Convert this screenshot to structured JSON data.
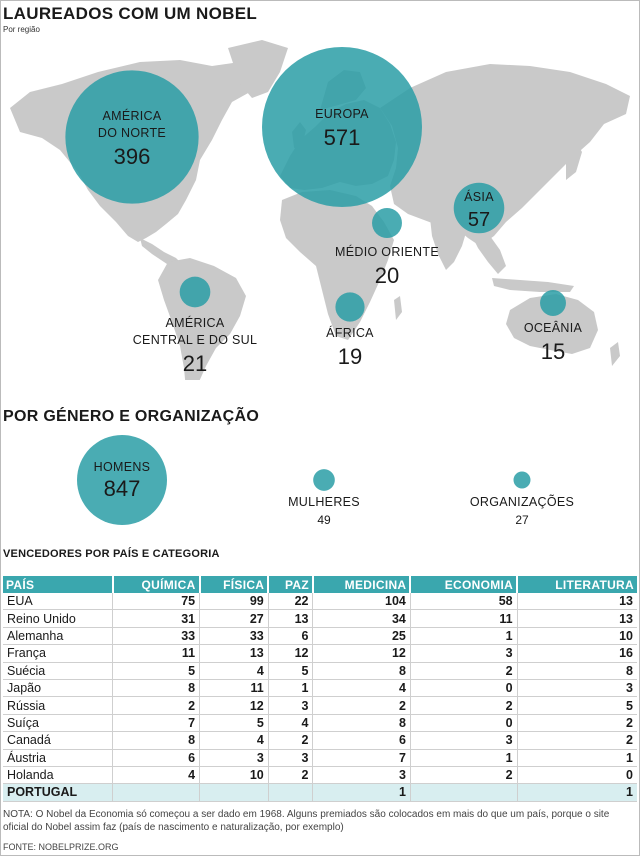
{
  "header": {
    "title": "LAUREADOS COM UM NOBEL",
    "subtitle": "Por região"
  },
  "chart_data": [
    {
      "type": "bubble-map",
      "title": "LAUREADOS COM UM NOBEL",
      "subtitle": "Por região",
      "regions": [
        {
          "name": "AMÉRICA DO NORTE",
          "label_lines": [
            "AMÉRICA",
            "DO NORTE"
          ],
          "value": 396
        },
        {
          "name": "EUROPA",
          "label_lines": [
            "EUROPA"
          ],
          "value": 571
        },
        {
          "name": "ÁSIA",
          "label_lines": [
            "ÁSIA"
          ],
          "value": 57
        },
        {
          "name": "MÉDIO ORIENTE",
          "label_lines": [
            "MÉDIO ORIENTE"
          ],
          "value": 20
        },
        {
          "name": "AMÉRICA CENTRAL E DO SUL",
          "label_lines": [
            "AMÉRICA",
            "CENTRAL E DO SUL"
          ],
          "value": 21
        },
        {
          "name": "ÁFRICA",
          "label_lines": [
            "ÁFRICA"
          ],
          "value": 19
        },
        {
          "name": "OCEÂNIA",
          "label_lines": [
            "OCEÂNIA"
          ],
          "value": 15
        }
      ],
      "colors": {
        "bubble": "#2a9ea6",
        "land": "#c9c9c9"
      }
    },
    {
      "type": "bubble",
      "title": "POR GÉNERO E ORGANIZAÇÃO",
      "categories": [
        "HOMENS",
        "MULHERES",
        "ORGANIZAÇÕES"
      ],
      "values": [
        847,
        49,
        27
      ]
    },
    {
      "type": "table",
      "title": "VENCEDORES POR PAÍS E CATEGORIA",
      "columns": [
        "PAÍS",
        "QUÍMICA",
        "FÍSICA",
        "PAZ",
        "MEDICINA",
        "ECONOMIA",
        "LITERATURA"
      ],
      "rows": [
        [
          "EUA",
          "75",
          "99",
          "22",
          "104",
          "58",
          "13"
        ],
        [
          "Reino Unido",
          "31",
          "27",
          "13",
          "34",
          "11",
          "13"
        ],
        [
          "Alemanha",
          "33",
          "33",
          "6",
          "25",
          "1",
          "10"
        ],
        [
          "França",
          "11",
          "13",
          "12",
          "12",
          "3",
          "16"
        ],
        [
          "Suécia",
          "5",
          "4",
          "5",
          "8",
          "2",
          "8"
        ],
        [
          "Japão",
          "8",
          "11",
          "1",
          "4",
          "0",
          "3"
        ],
        [
          "Rússia",
          "2",
          "12",
          "3",
          "2",
          "2",
          "5"
        ],
        [
          "Suíça",
          "7",
          "5",
          "4",
          "8",
          "0",
          "2"
        ],
        [
          "Canadá",
          "8",
          "4",
          "2",
          "6",
          "3",
          "2"
        ],
        [
          "Áustria",
          "6",
          "3",
          "3",
          "7",
          "1",
          "1"
        ],
        [
          "Holanda",
          "4",
          "10",
          "2",
          "3",
          "2",
          "0"
        ],
        [
          "PORTUGAL",
          "",
          "",
          "",
          "1",
          "",
          "1"
        ]
      ]
    }
  ],
  "footer": {
    "note": "NOTA: O Nobel da Economia só começou a ser dado em 1968. Alguns premiados são colocados em mais do que um país, porque o site oficial do Nobel assim faz (país de nascimento e naturalização, por exemplo)",
    "source": "FONTE: NOBELPRIZE.ORG"
  }
}
